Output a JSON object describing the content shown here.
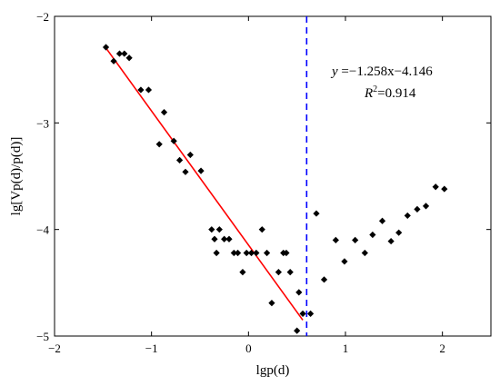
{
  "chart_data": {
    "type": "scatter",
    "xlabel": "lgp(d)",
    "ylabel": "lg[Vp(d)/p(d)]",
    "xlim": [
      -2,
      2.5
    ],
    "ylim": [
      -5,
      -2
    ],
    "xticks": [
      -2,
      -1,
      0,
      1,
      2
    ],
    "yticks": [
      -5,
      -4,
      -3,
      -2
    ],
    "xtick_labels": [
      "−2",
      "−1",
      "0",
      "1",
      "2"
    ],
    "ytick_labels": [
      "−5",
      "−4",
      "−3",
      "−2"
    ],
    "grid": false,
    "series": [
      {
        "marker": "diamond",
        "color": "#000000",
        "points": [
          [
            -1.47,
            -2.29
          ],
          [
            -1.39,
            -2.42
          ],
          [
            -1.33,
            -2.35
          ],
          [
            -1.28,
            -2.35
          ],
          [
            -1.23,
            -2.39
          ],
          [
            -1.11,
            -2.69
          ],
          [
            -1.03,
            -2.69
          ],
          [
            -0.92,
            -3.2
          ],
          [
            -0.87,
            -2.9
          ],
          [
            -0.77,
            -3.17
          ],
          [
            -0.71,
            -3.35
          ],
          [
            -0.65,
            -3.46
          ],
          [
            -0.6,
            -3.3
          ],
          [
            -0.49,
            -3.45
          ],
          [
            -0.38,
            -4.0
          ],
          [
            -0.35,
            -4.09
          ],
          [
            -0.33,
            -4.22
          ],
          [
            -0.3,
            -4.0
          ],
          [
            -0.25,
            -4.09
          ],
          [
            -0.2,
            -4.09
          ],
          [
            -0.15,
            -4.22
          ],
          [
            -0.11,
            -4.22
          ],
          [
            -0.06,
            -4.4
          ],
          [
            -0.02,
            -4.22
          ],
          [
            0.03,
            -4.22
          ],
          [
            0.08,
            -4.22
          ],
          [
            0.14,
            -4.0
          ],
          [
            0.19,
            -4.22
          ],
          [
            0.24,
            -4.69
          ],
          [
            0.31,
            -4.4
          ],
          [
            0.36,
            -4.22
          ],
          [
            0.39,
            -4.22
          ],
          [
            0.43,
            -4.4
          ],
          [
            0.5,
            -4.95
          ],
          [
            0.52,
            -4.59
          ],
          [
            0.56,
            -4.79
          ],
          [
            0.64,
            -4.79
          ],
          [
            0.7,
            -3.85
          ],
          [
            0.78,
            -4.47
          ],
          [
            0.9,
            -4.1
          ],
          [
            0.99,
            -4.3
          ],
          [
            1.1,
            -4.1
          ],
          [
            1.2,
            -4.22
          ],
          [
            1.28,
            -4.05
          ],
          [
            1.38,
            -3.92
          ],
          [
            1.47,
            -4.11
          ],
          [
            1.55,
            -4.03
          ],
          [
            1.64,
            -3.87
          ],
          [
            1.74,
            -3.81
          ],
          [
            1.83,
            -3.78
          ],
          [
            1.93,
            -3.6
          ],
          [
            2.02,
            -3.62
          ]
        ]
      }
    ],
    "fit_line": {
      "color": "#ff0000",
      "slope": -1.258,
      "intercept": -4.146,
      "x_range": [
        -1.47,
        0.56
      ]
    },
    "vline": {
      "x": 0.6,
      "color": "#0000ff",
      "style": "dashed"
    },
    "annotation": {
      "equation_y": "y",
      "equation_rest": " =−1.258x−4.146",
      "r2_label": "R",
      "r2_sup": "2",
      "r2_value": "=0.914"
    }
  }
}
